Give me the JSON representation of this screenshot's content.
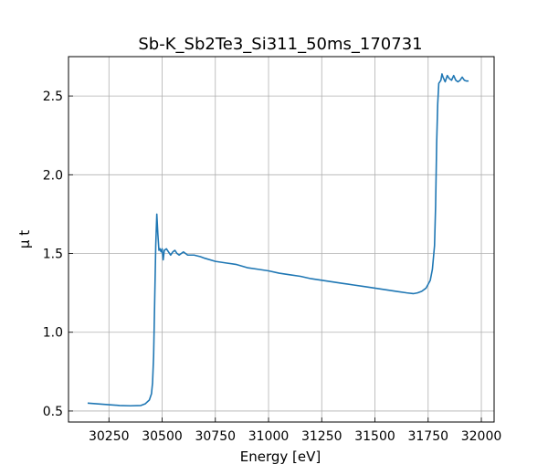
{
  "chart_data": {
    "type": "line",
    "title": "Sb-K_Sb2Te3_Si311_50ms_170731",
    "xlabel": "Energy [eV]",
    "ylabel": "μ t",
    "xlim": [
      30060,
      32060
    ],
    "ylim": [
      0.43,
      2.75
    ],
    "xticks": [
      30250,
      30500,
      30750,
      31000,
      31250,
      31500,
      31750,
      32000
    ],
    "yticks": [
      0.5,
      1.0,
      1.5,
      2.0,
      2.5
    ],
    "xtick_labels": [
      "30250",
      "30500",
      "30750",
      "31000",
      "31250",
      "31500",
      "31750",
      "32000"
    ],
    "ytick_labels": [
      "0.5",
      "1.0",
      "1.5",
      "2.0",
      "2.5"
    ],
    "grid": true,
    "tick_direction": "in",
    "series": [
      {
        "color": "#1f77b4",
        "x": [
          30150,
          30200,
          30250,
          30300,
          30350,
          30400,
          30420,
          30440,
          30450,
          30455,
          30460,
          30465,
          30470,
          30475,
          30480,
          30485,
          30490,
          30495,
          30500,
          30505,
          30510,
          30520,
          30530,
          30540,
          30550,
          30560,
          30570,
          30580,
          30590,
          30600,
          30620,
          30650,
          30680,
          30700,
          30750,
          30800,
          30850,
          30900,
          30950,
          31000,
          31050,
          31100,
          31150,
          31200,
          31250,
          31300,
          31350,
          31400,
          31450,
          31500,
          31550,
          31600,
          31650,
          31680,
          31700,
          31720,
          31740,
          31760,
          31770,
          31780,
          31785,
          31790,
          31795,
          31800,
          31810,
          31815,
          31820,
          31830,
          31840,
          31850,
          31860,
          31870,
          31880,
          31890,
          31900,
          31910,
          31920,
          31930,
          31940
        ],
        "values": [
          0.55,
          0.545,
          0.54,
          0.535,
          0.533,
          0.535,
          0.545,
          0.57,
          0.61,
          0.68,
          0.85,
          1.2,
          1.55,
          1.75,
          1.62,
          1.52,
          1.53,
          1.51,
          1.53,
          1.46,
          1.52,
          1.53,
          1.51,
          1.49,
          1.51,
          1.52,
          1.5,
          1.49,
          1.5,
          1.51,
          1.49,
          1.49,
          1.48,
          1.47,
          1.45,
          1.44,
          1.43,
          1.41,
          1.4,
          1.39,
          1.375,
          1.365,
          1.355,
          1.34,
          1.33,
          1.32,
          1.31,
          1.3,
          1.29,
          1.28,
          1.27,
          1.26,
          1.25,
          1.245,
          1.25,
          1.26,
          1.28,
          1.33,
          1.4,
          1.55,
          1.8,
          2.2,
          2.45,
          2.58,
          2.6,
          2.64,
          2.62,
          2.59,
          2.63,
          2.61,
          2.6,
          2.63,
          2.6,
          2.59,
          2.6,
          2.62,
          2.6,
          2.595,
          2.595
        ]
      }
    ]
  }
}
